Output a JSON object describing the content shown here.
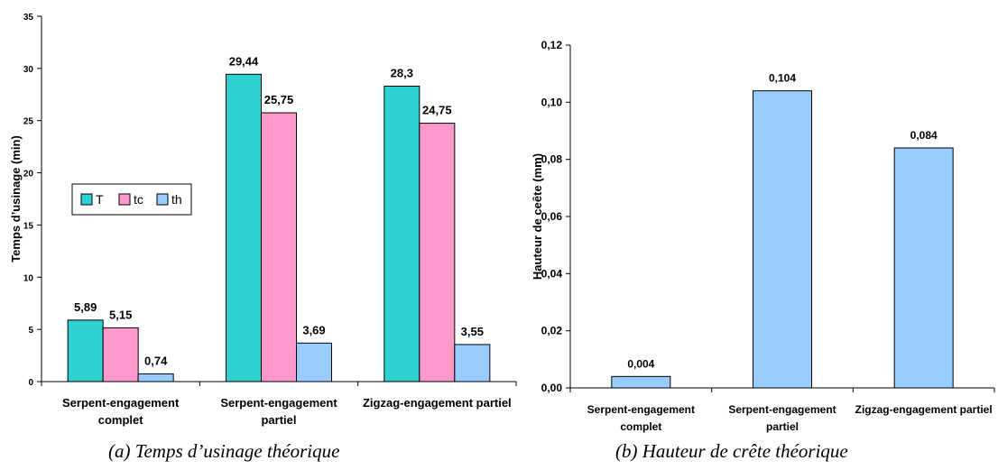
{
  "chart_data": [
    {
      "type": "bar",
      "ylabel": "Temps d’usinage (min)",
      "ylim": [
        0,
        35
      ],
      "yticks": [
        "0",
        "5",
        "10",
        "15",
        "20",
        "25",
        "30",
        "35"
      ],
      "categories": [
        [
          "Serpent-engagement",
          "complet"
        ],
        [
          "Serpent-engagement",
          "partiel"
        ],
        [
          "Zigzag-engagement partiel"
        ]
      ],
      "series": [
        {
          "name": "T",
          "color": "#2ed0d0",
          "values": [
            5.89,
            29.44,
            28.3
          ],
          "labels": [
            "5,89",
            "29,44",
            "28,3"
          ]
        },
        {
          "name": "tc",
          "color": "#ff99cc",
          "values": [
            5.15,
            25.75,
            24.75
          ],
          "labels": [
            "5,15",
            "25,75",
            "24,75"
          ]
        },
        {
          "name": "th",
          "color": "#99ccff",
          "values": [
            0.74,
            3.69,
            3.55
          ],
          "labels": [
            "0,74",
            "3,69",
            "3,55"
          ]
        }
      ],
      "legend": "left-middle",
      "grid": false
    },
    {
      "type": "bar",
      "ylabel": "Hauteur de ceête (mm)",
      "ylim": [
        0,
        0.12
      ],
      "yticks": [
        "0,00",
        "0,02",
        "0,04",
        "0,06",
        "0,08",
        "0,10",
        "0,12"
      ],
      "categories": [
        [
          "Serpent-engagement",
          "complet"
        ],
        [
          "Serpent-engagement",
          "partiel"
        ],
        [
          "Zigzag-engagement partiel"
        ]
      ],
      "series": [
        {
          "color": "#99ccff",
          "values": [
            0.004,
            0.104,
            0.084
          ],
          "labels": [
            "0,004",
            "0,104",
            "0,084"
          ]
        }
      ],
      "grid": false
    }
  ],
  "captions": {
    "a": "(a) Temps d’usinage théorique",
    "b": "(b) Hauteur de crête théorique"
  }
}
